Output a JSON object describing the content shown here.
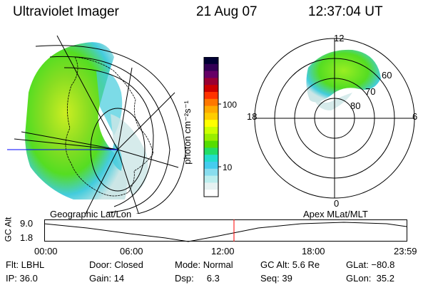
{
  "header": {
    "instrument": "Ultraviolet Imager",
    "date": "21 Aug 07",
    "time": "12:37:04 UT"
  },
  "colorbar": {
    "unit_label": "photon cm⁻²s⁻¹",
    "ticks": [
      "100",
      "10"
    ],
    "stops": [
      "#000033",
      "#330055",
      "#660066",
      "#990033",
      "#cc0000",
      "#ff3300",
      "#ff7700",
      "#ffaa00",
      "#ffcc00",
      "#ffff00",
      "#ccff00",
      "#99ee00",
      "#55dd00",
      "#22dd66",
      "#22ddcc",
      "#44ccee",
      "#88ddee",
      "#bbeeee",
      "#e6f2f2",
      "#ffffff"
    ]
  },
  "polar": {
    "mlt_labels": {
      "top": "12",
      "left": "18",
      "right": "6",
      "bottom": "0"
    },
    "lat_labels": [
      "60",
      "70",
      "80"
    ]
  },
  "timeline": {
    "left_label": "Geographic Lat/Lon",
    "right_label": "Apex MLat/MLT",
    "ylabel": "GC Alt",
    "y_ticks": [
      "9.0",
      "1.8"
    ],
    "x_ticks": [
      "00:00",
      "06:00",
      "12:00",
      "18:00",
      "23:59"
    ],
    "marker_color": "#ff0000"
  },
  "status": {
    "flt": "Flt: LBHL",
    "ip": "IP: 36.0",
    "door": "Door: Closed",
    "gain": "Gain: 14",
    "mode": "Mode: Normal",
    "dsp": "Dsp:     6.3",
    "gc_alt": "GC Alt: 5.6 Re",
    "seq": "Seq: 39",
    "glat": "GLat: −80.8",
    "glon": "GLon:  35.2"
  },
  "colors": {
    "aurora_green": "#55dd22",
    "aurora_cyan": "#44ccdd",
    "aurora_yellow": "#ccee22",
    "aurora_pale": "#cce6e6",
    "meridian_blue": "#0000ff"
  }
}
